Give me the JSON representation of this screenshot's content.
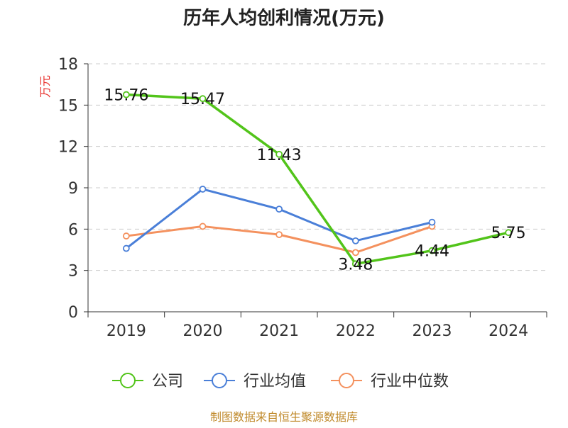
{
  "chart_data": {
    "type": "line",
    "title": "历年人均创利情况(万元)",
    "ylabel": "万元",
    "xlabel": "",
    "ylim": [
      0,
      18
    ],
    "yticks": [
      0,
      3,
      6,
      9,
      12,
      15,
      18
    ],
    "grid": true,
    "legend_position": "bottom",
    "categories": [
      "2019",
      "2020",
      "2021",
      "2022",
      "2023",
      "2024"
    ],
    "series": [
      {
        "name": "公司",
        "color": "#52c41a",
        "values": [
          15.76,
          15.47,
          11.43,
          3.48,
          4.44,
          5.75
        ],
        "labels": [
          "15.76",
          "15.47",
          "11.43",
          "3.48",
          "4.44",
          "5.75"
        ]
      },
      {
        "name": "行业均值",
        "color": "#4a7fd8",
        "values": [
          4.6,
          8.9,
          7.45,
          5.15,
          6.5,
          null
        ]
      },
      {
        "name": "行业中位数",
        "color": "#f4915e",
        "values": [
          5.5,
          6.2,
          5.6,
          4.3,
          6.2,
          null
        ]
      }
    ]
  },
  "source": "制图数据来自恒生聚源数据库",
  "colors": {
    "ylabel": "#e8322e",
    "source": "#c08a2b",
    "grid": "#cccccc",
    "axis": "#333333"
  }
}
